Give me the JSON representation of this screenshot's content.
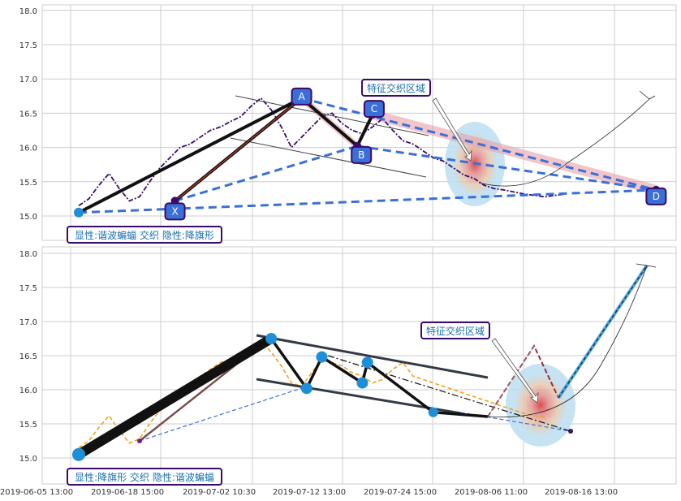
{
  "chart_data": [
    {
      "type": "line",
      "panel": "top",
      "ylim": [
        14.6,
        18.05
      ],
      "yticks": [
        "15.0",
        "15.5",
        "16.0",
        "16.5",
        "17.0",
        "17.5",
        "18.0"
      ],
      "grid": true,
      "series": [
        {
          "style": "dashdot-purple",
          "x": [
            0,
            2,
            4,
            6,
            8,
            10,
            12,
            14,
            16,
            18,
            20,
            22,
            24,
            26,
            28,
            30,
            32,
            34,
            36,
            38,
            40,
            42,
            44,
            46,
            48,
            50,
            52,
            54,
            56,
            58,
            60,
            62,
            64,
            66,
            68,
            70,
            72,
            74,
            76,
            78,
            80,
            82,
            84,
            86,
            88,
            90,
            92,
            94,
            96
          ],
          "y": [
            15.15,
            15.25,
            15.45,
            15.62,
            15.4,
            15.22,
            15.28,
            15.5,
            15.7,
            15.85,
            16.0,
            16.05,
            16.15,
            16.25,
            16.3,
            16.38,
            16.45,
            16.6,
            16.72,
            16.55,
            16.3,
            16.0,
            16.15,
            16.3,
            16.45,
            16.5,
            16.35,
            16.25,
            16.2,
            16.3,
            16.42,
            16.25,
            16.1,
            16.05,
            15.95,
            15.85,
            15.8,
            15.7,
            15.6,
            15.55,
            15.45,
            15.4,
            15.38,
            15.35,
            15.32,
            15.3,
            15.28,
            15.3,
            15.32
          ]
        }
      ],
      "points": [
        {
          "label": "X",
          "x": 0,
          "y": 15.05
        },
        {
          "label": "",
          "x": 19,
          "y": 15.22
        },
        {
          "label": "A",
          "x": 44,
          "y": 16.72
        },
        {
          "label": "B",
          "x": 55,
          "y": 16.02
        },
        {
          "label": "C",
          "x": 58,
          "y": 16.48
        },
        {
          "label": "D",
          "x": 114,
          "y": 15.38
        }
      ],
      "annotations": {
        "region_label": "特征交织区域",
        "info_label": "显性:谐波蝙蝠 交织 隐性:降旗形"
      }
    },
    {
      "type": "line",
      "panel": "bottom",
      "ylim": [
        14.6,
        18.1
      ],
      "yticks": [
        "15.0",
        "15.5",
        "16.0",
        "16.5",
        "17.0",
        "17.5",
        "18.0"
      ],
      "grid": true,
      "xticks": [
        "2019-06-05 13:00",
        "2019-06-18 15:00",
        "2019-07-02 10:30",
        "2019-07-12 13:00",
        "2019-07-24 15:00",
        "2019-08-06 11:00",
        "2019-08-16 13:00"
      ],
      "series": [
        {
          "style": "dashed-orange",
          "x": [
            0,
            2,
            4,
            6,
            8,
            10,
            12,
            14,
            16,
            18,
            20,
            22,
            24,
            26,
            28,
            30,
            32,
            34,
            36,
            38,
            40,
            42,
            44,
            46,
            48,
            50,
            52,
            54,
            56,
            58,
            60,
            62,
            64,
            66,
            68,
            70,
            72,
            74,
            76,
            78,
            80,
            82,
            84,
            86,
            88,
            90,
            92
          ],
          "y": [
            15.15,
            15.25,
            15.45,
            15.62,
            15.4,
            15.22,
            15.28,
            15.5,
            15.7,
            15.9,
            16.0,
            16.1,
            16.2,
            16.3,
            16.4,
            16.45,
            16.55,
            16.6,
            16.72,
            16.55,
            16.35,
            16.1,
            16.05,
            16.25,
            16.45,
            16.4,
            16.35,
            16.25,
            16.2,
            16.1,
            16.15,
            16.3,
            16.4,
            16.2,
            16.15,
            16.1,
            16.05,
            16.0,
            15.95,
            15.9,
            15.85,
            15.8,
            15.75,
            15.7,
            15.65,
            15.62,
            15.6
          ]
        }
      ],
      "points": [
        {
          "x": 0,
          "y": 15.05
        },
        {
          "x": 38,
          "y": 16.75
        },
        {
          "x": 45,
          "y": 16.02
        },
        {
          "x": 48,
          "y": 16.48
        },
        {
          "x": 56,
          "y": 16.1
        },
        {
          "x": 57,
          "y": 16.4
        },
        {
          "x": 70,
          "y": 15.67
        }
      ],
      "annotations": {
        "region_label": "特征交织区域",
        "info_label": "显性:降旗形 交织 隐性:谐波蝙蝠"
      }
    }
  ],
  "colors": {
    "point_fill": "#3a6fd8",
    "point_edge": "#3b0a6b",
    "dot_blue": "#1e8fd6",
    "series_purple": "#3a0d6e",
    "series_orange": "#f0a020",
    "dash_blue": "#3a6fd8",
    "pink_band": "#e8a0a8",
    "grid": "#cccccc"
  }
}
